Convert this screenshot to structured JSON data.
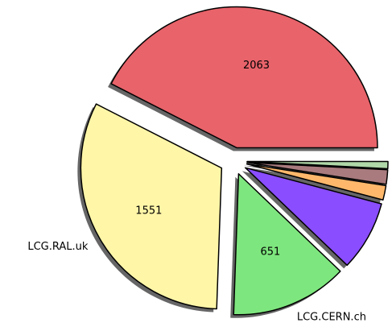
{
  "chart_data": {
    "type": "pie",
    "categories": [
      null,
      "LCG.RAL.uk",
      "LCG.CERN.ch",
      null,
      null,
      null,
      null
    ],
    "values": [
      2063,
      1551,
      651,
      390,
      80,
      80,
      40
    ],
    "colors": [
      "#e8636a",
      "#fff6a8",
      "#7ee67e",
      "#8a4dff",
      "#ffb86b",
      "#a97b7e",
      "#b0d8a8"
    ],
    "shadow": true
  }
}
